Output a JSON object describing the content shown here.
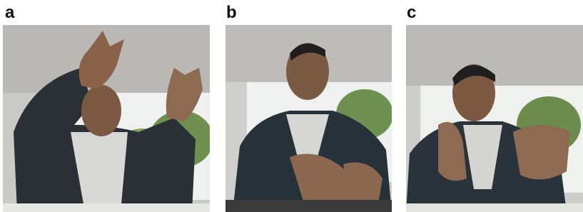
{
  "panels": [
    {
      "label": "a"
    },
    {
      "label": "b"
    },
    {
      "label": "c"
    }
  ]
}
